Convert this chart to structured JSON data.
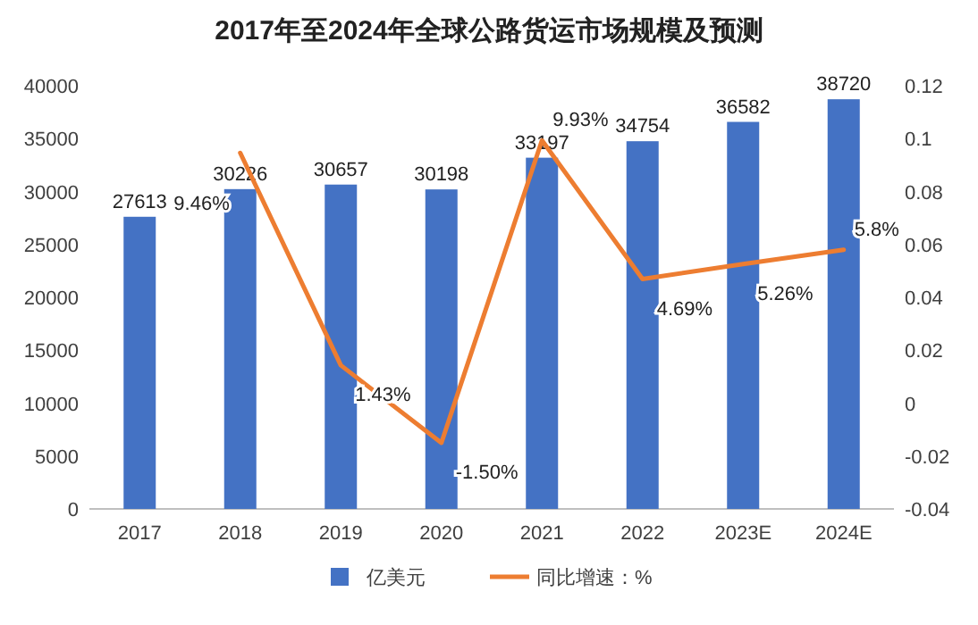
{
  "chart_data": {
    "type": "bar",
    "title": "2017年至2024年全球公路货运市场规模及预测",
    "categories": [
      "2017",
      "2018",
      "2019",
      "2020",
      "2021",
      "2022",
      "2023E",
      "2024E"
    ],
    "series": [
      {
        "name": "亿美元",
        "color": "#4472c4",
        "values": [
          27613,
          30226,
          30657,
          30198,
          33197,
          34754,
          36582,
          38720
        ],
        "value_labels": [
          "27613",
          "30226",
          "30657",
          "30198",
          "33197",
          "34754",
          "36582",
          "38720"
        ]
      },
      {
        "name": "同比增速：%",
        "type": "line",
        "axis": "y2",
        "color": "#ed7d31",
        "values": [
          null,
          0.0946,
          0.0143,
          -0.015,
          0.0993,
          0.0469,
          0.0526,
          0.058
        ],
        "value_labels": [
          null,
          "9.46%",
          "1.43%",
          "-1.50%",
          "9.93%",
          "4.69%",
          "5.26%",
          "5.8%"
        ]
      }
    ],
    "ylim": [
      0,
      40000
    ],
    "yticks": [
      0,
      5000,
      10000,
      15000,
      20000,
      25000,
      30000,
      35000,
      40000
    ],
    "y2lim": [
      -0.04,
      0.12
    ],
    "y2ticks": [
      -0.04,
      -0.02,
      0,
      0.02,
      0.04,
      0.06,
      0.08,
      0.1,
      0.12
    ],
    "grid": false,
    "legend": "bottom",
    "marker": "none",
    "line_style": "solid"
  }
}
